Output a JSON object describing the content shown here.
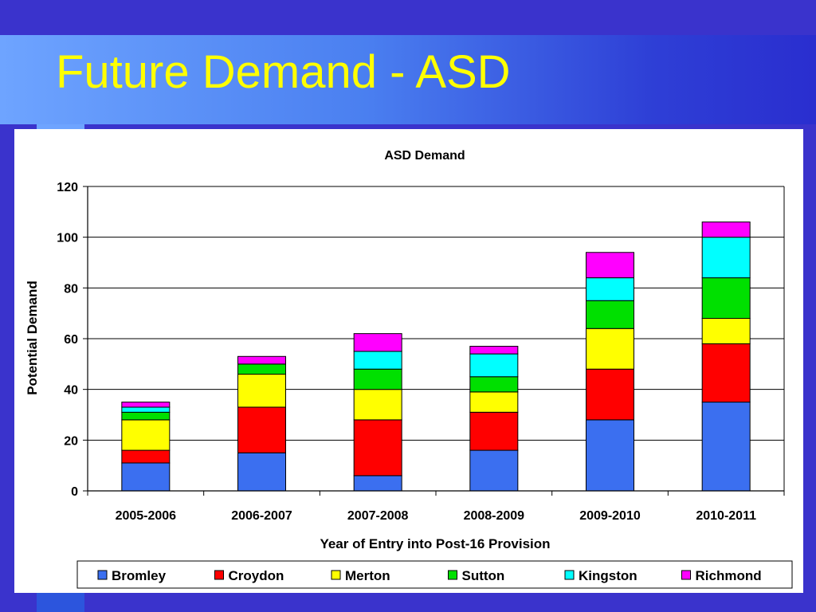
{
  "slide": {
    "title": "Future Demand - ASD"
  },
  "colors": {
    "background": "#3a33cc",
    "title": "#ffff00",
    "Bromley": "#3b6ff0",
    "Croydon": "#ff0000",
    "Merton": "#ffff00",
    "Sutton": "#00e000",
    "Kingston": "#00ffff",
    "Richmond": "#ff00ff"
  },
  "chart_data": {
    "type": "bar",
    "stacked": true,
    "title": "ASD Demand",
    "xlabel": "Year of Entry into Post-16 Provision",
    "ylabel": "Potential Demand",
    "ylim": [
      0,
      120
    ],
    "yticks": [
      "0",
      "20",
      "40",
      "60",
      "80",
      "100",
      "120"
    ],
    "grid": true,
    "legend_position": "bottom",
    "categories": [
      "2005-2006",
      "2006-2007",
      "2007-2008",
      "2008-2009",
      "2009-2010",
      "2010-2011"
    ],
    "series": [
      {
        "name": "Bromley",
        "color": "#3b6ff0",
        "values": [
          11,
          15,
          6,
          16,
          28,
          35
        ]
      },
      {
        "name": "Croydon",
        "color": "#ff0000",
        "values": [
          5,
          18,
          22,
          15,
          20,
          23
        ]
      },
      {
        "name": "Merton",
        "color": "#ffff00",
        "values": [
          12,
          13,
          12,
          8,
          16,
          10
        ]
      },
      {
        "name": "Sutton",
        "color": "#00e000",
        "values": [
          3,
          4,
          8,
          6,
          11,
          16
        ]
      },
      {
        "name": "Kingston",
        "color": "#00ffff",
        "values": [
          2,
          0,
          7,
          9,
          9,
          16
        ]
      },
      {
        "name": "Richmond",
        "color": "#ff00ff",
        "values": [
          2,
          3,
          7,
          3,
          10,
          6
        ]
      }
    ]
  }
}
